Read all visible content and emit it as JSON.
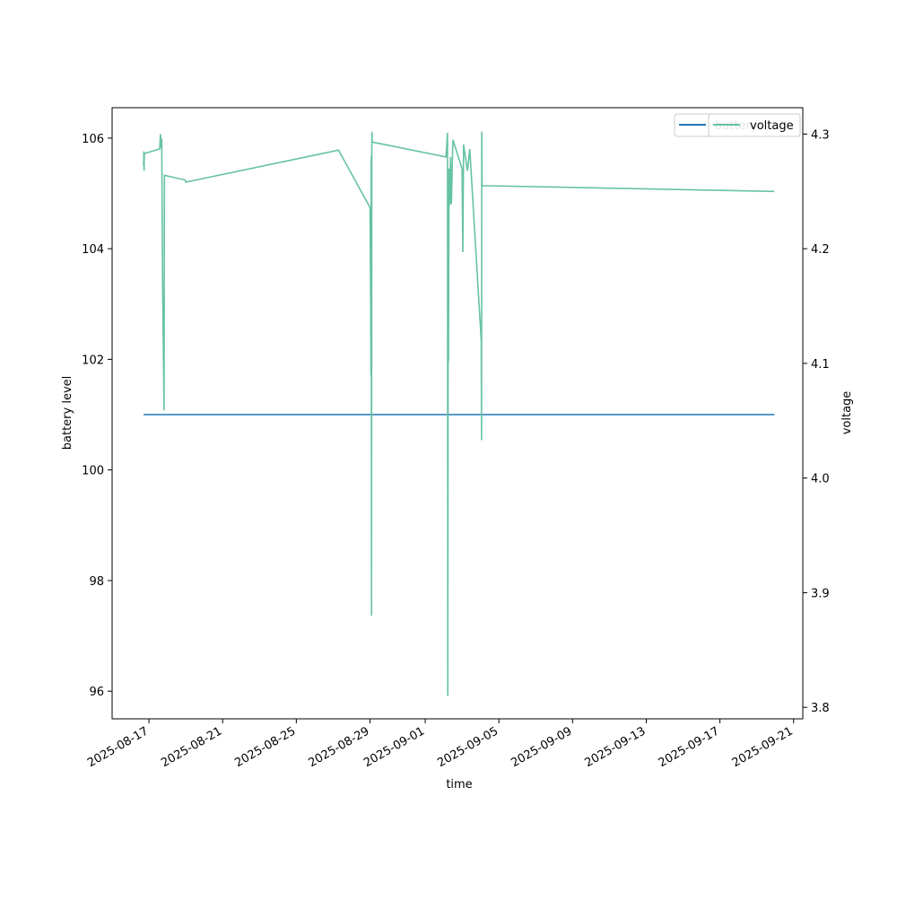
{
  "chart_data": {
    "type": "line",
    "xlabel": "time",
    "ylabel_left": "battery level",
    "ylabel_right": "voltage",
    "xlim": [
      "2025-08-15T00:00",
      "2025-09-21T12:00"
    ],
    "ylim_left": [
      95.5,
      106.55
    ],
    "ylim_right": [
      3.79,
      4.323
    ],
    "x_ticks": [
      "2025-08-17",
      "2025-08-21",
      "2025-08-25",
      "2025-08-29",
      "2025-09-01",
      "2025-09-05",
      "2025-09-09",
      "2025-09-13",
      "2025-09-17",
      "2025-09-21"
    ],
    "y_ticks_left": [
      96,
      98,
      100,
      102,
      104,
      106
    ],
    "y_ticks_right": [
      "3.8",
      "3.9",
      "4.0",
      "4.1",
      "4.2",
      "4.3"
    ],
    "grid": false,
    "legend_placement": "top-right",
    "series": [
      {
        "name": "battery",
        "axis": "left",
        "color": "#1f77b4",
        "points": [
          [
            "2025-08-16T17:00",
            101
          ],
          [
            "2025-09-19T23:00",
            101
          ]
        ]
      },
      {
        "name": "voltage",
        "axis": "right",
        "color": "#66c2a5",
        "points": [
          [
            "2025-08-16T17:00",
            4.272
          ],
          [
            "2025-08-16T17:20",
            4.285
          ],
          [
            "2025-08-16T17:40",
            4.268
          ],
          [
            "2025-08-16T18:00",
            4.283
          ],
          [
            "2025-08-17T14:00",
            4.287
          ],
          [
            "2025-08-17T15:00",
            4.3
          ],
          [
            "2025-08-17T15:40",
            4.29
          ],
          [
            "2025-08-17T16:10",
            4.288
          ],
          [
            "2025-08-17T16:40",
            4.296
          ],
          [
            "2025-08-17T17:40",
            4.175
          ],
          [
            "2025-08-17T19:40",
            4.059
          ],
          [
            "2025-08-17T20:10",
            4.264
          ],
          [
            "2025-08-18T23:00",
            4.26
          ],
          [
            "2025-08-19T00:00",
            4.258
          ],
          [
            "2025-08-27T07:00",
            4.286
          ],
          [
            "2025-08-29T00:00",
            4.236
          ],
          [
            "2025-08-29T01:00",
            4.15
          ],
          [
            "2025-08-29T01:20",
            4.09
          ],
          [
            "2025-08-29T01:40",
            4.281
          ],
          [
            "2025-08-29T02:00",
            3.88
          ],
          [
            "2025-08-29T02:20",
            4.28
          ],
          [
            "2025-08-29T02:40",
            4.302
          ],
          [
            "2025-08-29T03:00",
            4.293
          ],
          [
            "2025-09-02T03:00",
            4.28
          ],
          [
            "2025-09-02T05:00",
            4.301
          ],
          [
            "2025-09-02T05:20",
            3.81
          ],
          [
            "2025-09-02T05:40",
            3.99
          ],
          [
            "2025-09-02T06:00",
            4.2
          ],
          [
            "2025-09-02T06:20",
            4.102
          ],
          [
            "2025-09-02T07:00",
            4.27
          ],
          [
            "2025-09-02T08:00",
            4.238
          ],
          [
            "2025-09-02T09:00",
            4.28
          ],
          [
            "2025-09-02T10:00",
            4.239
          ],
          [
            "2025-09-02T12:00",
            4.295
          ],
          [
            "2025-09-03T00:00",
            4.27
          ],
          [
            "2025-09-03T01:00",
            4.197
          ],
          [
            "2025-09-03T02:00",
            4.291
          ],
          [
            "2025-09-03T07:00",
            4.268
          ],
          [
            "2025-09-03T08:00",
            4.274
          ],
          [
            "2025-09-03T10:00",
            4.287
          ],
          [
            "2025-09-04T01:00",
            4.12
          ],
          [
            "2025-09-04T01:20",
            4.033
          ],
          [
            "2025-09-04T01:40",
            4.302
          ],
          [
            "2025-09-04T02:00",
            4.255
          ],
          [
            "2025-09-19T23:00",
            4.25
          ]
        ]
      }
    ]
  }
}
